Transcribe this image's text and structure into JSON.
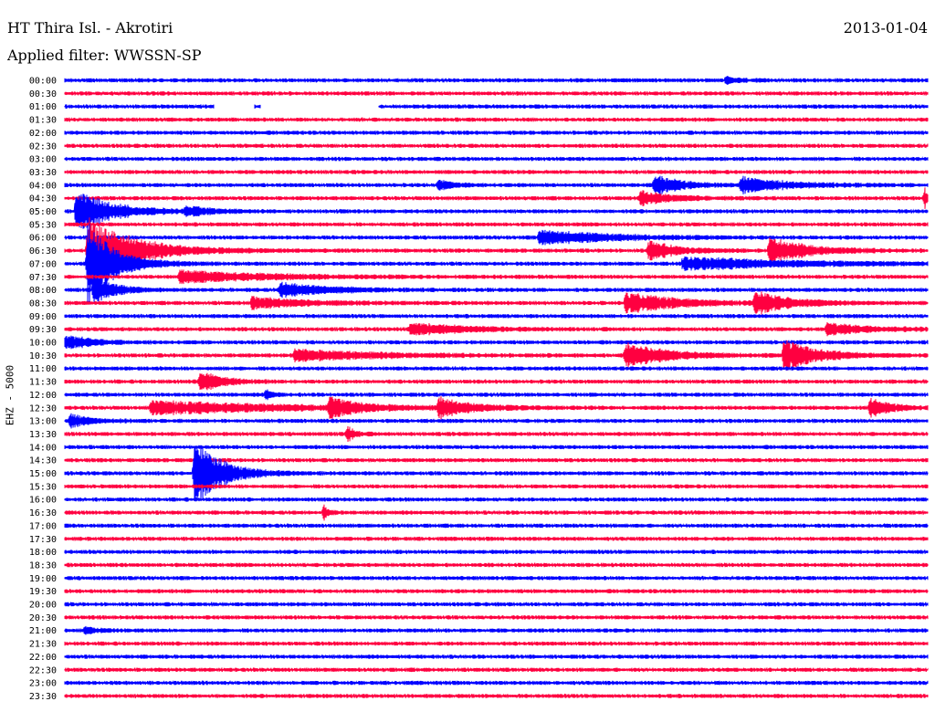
{
  "header": {
    "station": "HT Thira Isl. - Akrotiri",
    "date": "2013-01-04",
    "filter": "Applied filter: WWSSN-SP"
  },
  "chart_data": {
    "type": "line",
    "chart_kind": "helicorder",
    "ylabel": "EHZ - 5000",
    "row_labels": [
      "00:00",
      "00:30",
      "01:00",
      "01:30",
      "02:00",
      "02:30",
      "03:00",
      "03:30",
      "04:00",
      "04:30",
      "05:00",
      "05:30",
      "06:00",
      "06:30",
      "07:00",
      "07:30",
      "08:00",
      "08:30",
      "09:00",
      "09:30",
      "10:00",
      "10:30",
      "11:00",
      "11:30",
      "12:00",
      "12:30",
      "13:00",
      "13:30",
      "14:00",
      "14:30",
      "15:00",
      "15:30",
      "16:00",
      "16:30",
      "17:00",
      "17:30",
      "18:00",
      "18:30",
      "19:00",
      "19:30",
      "20:00",
      "20:30",
      "21:00",
      "21:30",
      "22:00",
      "22:30",
      "23:00",
      "23:30"
    ],
    "colors": {
      "even_rows": "#0000ff",
      "odd_rows": "#ff0040"
    },
    "x_unit": "minutes within row",
    "xlim": [
      0,
      30
    ],
    "noise_level": 0.25,
    "gaps": [
      {
        "row": "01:00",
        "from": 5.2,
        "to": 6.6
      },
      {
        "row": "01:00",
        "from": 6.8,
        "to": 10.9
      }
    ],
    "events": [
      {
        "row": "00:00",
        "t": 23.0,
        "amp": 0.4,
        "dur": 0.9
      },
      {
        "row": "04:00",
        "t": 13.0,
        "amp": 0.6,
        "dur": 1.2
      },
      {
        "row": "04:00",
        "t": 20.5,
        "amp": 1.2,
        "dur": 2.0
      },
      {
        "row": "04:00",
        "t": 23.5,
        "amp": 0.9,
        "dur": 3.5
      },
      {
        "row": "04:30",
        "t": 20.0,
        "amp": 0.8,
        "dur": 2.5
      },
      {
        "row": "04:30",
        "t": 29.9,
        "amp": 1.3,
        "dur": 0.3
      },
      {
        "row": "05:00",
        "t": 0.4,
        "amp": 2.6,
        "dur": 2.6
      },
      {
        "row": "05:00",
        "t": 4.2,
        "amp": 0.5,
        "dur": 2.0
      },
      {
        "row": "06:00",
        "t": 16.5,
        "amp": 0.9,
        "dur": 5.0
      },
      {
        "row": "06:30",
        "t": 0.8,
        "amp": 4.0,
        "dur": 3.5
      },
      {
        "row": "06:30",
        "t": 20.3,
        "amp": 1.2,
        "dur": 2.0
      },
      {
        "row": "06:30",
        "t": 24.5,
        "amp": 1.5,
        "dur": 3.0
      },
      {
        "row": "07:00",
        "t": 0.8,
        "amp": 5.0,
        "dur": 2.0
      },
      {
        "row": "07:00",
        "t": 21.5,
        "amp": 0.8,
        "dur": 8.0
      },
      {
        "row": "07:30",
        "t": 4.0,
        "amp": 0.8,
        "dur": 6.0
      },
      {
        "row": "08:00",
        "t": 1.0,
        "amp": 1.8,
        "dur": 1.5
      },
      {
        "row": "08:00",
        "t": 7.5,
        "amp": 0.9,
        "dur": 3.5
      },
      {
        "row": "08:30",
        "t": 6.5,
        "amp": 0.7,
        "dur": 4.0
      },
      {
        "row": "08:30",
        "t": 19.5,
        "amp": 1.2,
        "dur": 4.0
      },
      {
        "row": "08:30",
        "t": 24.0,
        "amp": 1.4,
        "dur": 2.5
      },
      {
        "row": "09:30",
        "t": 12.0,
        "amp": 0.8,
        "dur": 4.0
      },
      {
        "row": "09:30",
        "t": 26.5,
        "amp": 0.7,
        "dur": 3.5
      },
      {
        "row": "10:00",
        "t": 0.0,
        "amp": 0.9,
        "dur": 2.0
      },
      {
        "row": "10:30",
        "t": 8.0,
        "amp": 0.7,
        "dur": 6.0
      },
      {
        "row": "10:30",
        "t": 19.5,
        "amp": 1.5,
        "dur": 3.0
      },
      {
        "row": "10:30",
        "t": 25.0,
        "amp": 1.9,
        "dur": 2.5
      },
      {
        "row": "11:30",
        "t": 4.7,
        "amp": 1.4,
        "dur": 1.5
      },
      {
        "row": "12:00",
        "t": 7.0,
        "amp": 0.6,
        "dur": 0.5
      },
      {
        "row": "12:30",
        "t": 3.0,
        "amp": 0.8,
        "dur": 10.0
      },
      {
        "row": "12:30",
        "t": 9.2,
        "amp": 1.2,
        "dur": 2.0
      },
      {
        "row": "12:30",
        "t": 13.0,
        "amp": 1.3,
        "dur": 2.0
      },
      {
        "row": "12:30",
        "t": 28.0,
        "amp": 1.2,
        "dur": 1.5
      },
      {
        "row": "13:00",
        "t": 0.2,
        "amp": 0.8,
        "dur": 1.5
      },
      {
        "row": "13:30",
        "t": 9.8,
        "amp": 1.0,
        "dur": 0.6
      },
      {
        "row": "15:00",
        "t": 4.5,
        "amp": 4.2,
        "dur": 2.0
      },
      {
        "row": "16:30",
        "t": 9.0,
        "amp": 0.9,
        "dur": 0.4
      },
      {
        "row": "21:00",
        "t": 0.7,
        "amp": 0.4,
        "dur": 1.0
      }
    ]
  }
}
